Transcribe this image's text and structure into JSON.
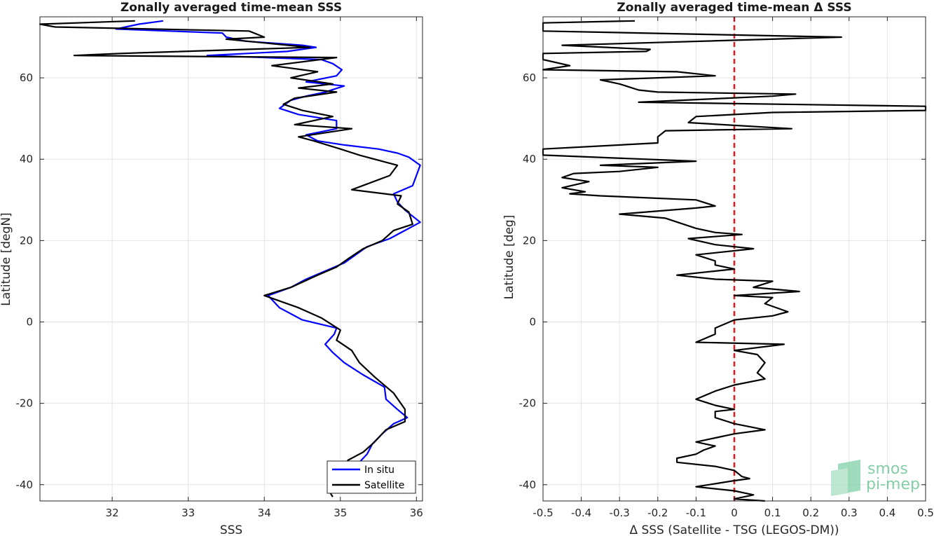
{
  "chart_data": [
    {
      "type": "line",
      "title": "Zonally averaged time-mean SSS",
      "xlabel": "SSS",
      "ylabel": "Latitude [degN]",
      "xlim": [
        31.05,
        36.08
      ],
      "ylim": [
        -44,
        75
      ],
      "xticks": [
        32,
        33,
        34,
        35,
        36
      ],
      "yticks": [
        -40,
        -20,
        0,
        20,
        40,
        60
      ],
      "grid": true,
      "legend_position": "bottom-right",
      "series": [
        {
          "name": "In situ",
          "color": "#0000ff",
          "points": [
            [
              32.67,
              74.0
            ],
            [
              32.35,
              73.2
            ],
            [
              32.05,
              72.0
            ],
            [
              33.45,
              71.0
            ],
            [
              33.5,
              70.0
            ],
            [
              33.75,
              69.0
            ],
            [
              34.5,
              68.0
            ],
            [
              34.68,
              67.5
            ],
            [
              34.3,
              66.5
            ],
            [
              33.25,
              65.5
            ],
            [
              34.75,
              64.5
            ],
            [
              34.9,
              63.5
            ],
            [
              35.02,
              62.0
            ],
            [
              34.95,
              60.5
            ],
            [
              34.55,
              59.0
            ],
            [
              35.05,
              58.0
            ],
            [
              34.8,
              56.5
            ],
            [
              34.55,
              55.5
            ],
            [
              34.35,
              54.5
            ],
            [
              34.2,
              52.5
            ],
            [
              34.45,
              51.0
            ],
            [
              34.95,
              49.5
            ],
            [
              34.95,
              47.5
            ],
            [
              34.55,
              46.0
            ],
            [
              34.7,
              44.5
            ],
            [
              35.05,
              43.5
            ],
            [
              35.5,
              42.5
            ],
            [
              35.75,
              41.5
            ],
            [
              35.9,
              40.5
            ],
            [
              36.05,
              38.5
            ],
            [
              36.0,
              36.0
            ],
            [
              35.95,
              33.5
            ],
            [
              35.7,
              31.5
            ],
            [
              35.75,
              29.5
            ],
            [
              35.85,
              27.5
            ],
            [
              36.05,
              24.5
            ],
            [
              35.85,
              22.5
            ],
            [
              35.65,
              20.5
            ],
            [
              35.35,
              18.5
            ],
            [
              35.2,
              16.5
            ],
            [
              35.05,
              14.5
            ],
            [
              34.8,
              12.5
            ],
            [
              34.55,
              10.5
            ],
            [
              34.35,
              8.5
            ],
            [
              34.05,
              6.5
            ],
            [
              34.2,
              3.5
            ],
            [
              34.5,
              0.5
            ],
            [
              34.95,
              -1.5
            ],
            [
              34.92,
              -3.0
            ],
            [
              34.8,
              -5.5
            ],
            [
              34.9,
              -7.5
            ],
            [
              35.05,
              -10.0
            ],
            [
              35.3,
              -13.0
            ],
            [
              35.58,
              -16.0
            ],
            [
              35.6,
              -19.0
            ],
            [
              35.75,
              -21.5
            ],
            [
              35.88,
              -23.5
            ],
            [
              35.7,
              -25.0
            ],
            [
              35.55,
              -27.5
            ],
            [
              35.42,
              -30.0
            ],
            [
              35.35,
              -32.5
            ],
            [
              35.25,
              -34.5
            ]
          ]
        },
        {
          "name": "Satellite",
          "color": "#000000",
          "points": [
            [
              32.3,
              74.0
            ],
            [
              31.05,
              73.2
            ],
            [
              31.25,
              72.5
            ],
            [
              33.8,
              71.5
            ],
            [
              34.0,
              70.0
            ],
            [
              33.5,
              69.5
            ],
            [
              34.6,
              67.5
            ],
            [
              32.1,
              66.0
            ],
            [
              31.5,
              65.5
            ],
            [
              34.95,
              65.0
            ],
            [
              34.1,
              63.0
            ],
            [
              34.7,
              61.5
            ],
            [
              34.35,
              60.0
            ],
            [
              34.9,
              58.5
            ],
            [
              34.45,
              57.5
            ],
            [
              34.95,
              56.5
            ],
            [
              34.4,
              55.0
            ],
            [
              34.25,
              53.5
            ],
            [
              34.5,
              52.0
            ],
            [
              34.9,
              50.5
            ],
            [
              34.4,
              48.5
            ],
            [
              35.15,
              47.5
            ],
            [
              34.45,
              45.5
            ],
            [
              34.65,
              44.5
            ],
            [
              35.0,
              42.5
            ],
            [
              35.25,
              41.0
            ],
            [
              35.75,
              38.5
            ],
            [
              35.65,
              36.0
            ],
            [
              35.15,
              32.5
            ],
            [
              35.8,
              31.0
            ],
            [
              35.75,
              29.0
            ],
            [
              35.9,
              27.0
            ],
            [
              35.95,
              24.0
            ],
            [
              35.7,
              22.5
            ],
            [
              35.55,
              20.0
            ],
            [
              35.3,
              18.0
            ],
            [
              35.1,
              15.5
            ],
            [
              34.95,
              13.5
            ],
            [
              34.7,
              11.5
            ],
            [
              34.35,
              8.5
            ],
            [
              34.0,
              6.5
            ],
            [
              34.45,
              3.5
            ],
            [
              34.75,
              1.0
            ],
            [
              35.0,
              -2.0
            ],
            [
              34.95,
              -4.5
            ],
            [
              35.15,
              -7.0
            ],
            [
              35.25,
              -10.0
            ],
            [
              35.45,
              -13.5
            ],
            [
              35.7,
              -17.5
            ],
            [
              35.85,
              -21.5
            ],
            [
              35.85,
              -24.5
            ],
            [
              35.6,
              -26.5
            ],
            [
              35.45,
              -29.5
            ],
            [
              35.3,
              -32.0
            ],
            [
              35.1,
              -34.0
            ],
            [
              34.85,
              -41.5
            ],
            [
              34.9,
              -43.0
            ]
          ]
        }
      ]
    },
    {
      "type": "line",
      "title": "Zonally averaged time-mean Δ SSS",
      "xlabel": "Δ SSS (Satellite - TSG (LEGOS-DM))",
      "ylabel": "Latitude [deg]",
      "xlim": [
        -0.5,
        0.5
      ],
      "ylim": [
        -44,
        75
      ],
      "xticks": [
        -0.5,
        -0.4,
        -0.3,
        -0.2,
        -0.1,
        0,
        0.1,
        0.2,
        0.3,
        0.4,
        0.5
      ],
      "yticks": [
        -40,
        -20,
        0,
        20,
        40,
        60
      ],
      "grid": true,
      "reference_line": {
        "x": 0,
        "color": "#e31a1c",
        "style": "dashed"
      },
      "series": [
        {
          "color": "#000000",
          "points": [
            [
              -0.26,
              74.0
            ],
            [
              -0.5,
              73.5
            ],
            [
              -0.5,
              71.5
            ],
            [
              0.28,
              70.0
            ],
            [
              -0.45,
              68.0
            ],
            [
              -0.22,
              67.0
            ],
            [
              -0.23,
              66.5
            ],
            [
              -0.5,
              66.0
            ],
            [
              -0.5,
              64.5
            ],
            [
              -0.43,
              63.0
            ],
            [
              -0.5,
              62.0
            ],
            [
              -0.15,
              61.5
            ],
            [
              -0.05,
              60.5
            ],
            [
              -0.35,
              59.5
            ],
            [
              -0.3,
              58.5
            ],
            [
              -0.25,
              57.0
            ],
            [
              -0.2,
              56.5
            ],
            [
              0.16,
              56.0
            ],
            [
              0.1,
              55.5
            ],
            [
              -0.25,
              54.0
            ],
            [
              0.5,
              53.0
            ],
            [
              0.5,
              52.0
            ],
            [
              0.1,
              51.5
            ],
            [
              -0.1,
              50.5
            ],
            [
              -0.12,
              49.0
            ],
            [
              0.15,
              47.5
            ],
            [
              -0.18,
              47.0
            ],
            [
              -0.2,
              45.5
            ],
            [
              -0.2,
              44.0
            ],
            [
              -0.5,
              42.5
            ],
            [
              -0.5,
              41.0
            ],
            [
              -0.1,
              39.5
            ],
            [
              -0.35,
              38.5
            ],
            [
              -0.2,
              38.0
            ],
            [
              -0.3,
              37.0
            ],
            [
              -0.42,
              36.5
            ],
            [
              -0.45,
              35.5
            ],
            [
              -0.38,
              34.5
            ],
            [
              -0.45,
              33.0
            ],
            [
              -0.39,
              32.0
            ],
            [
              -0.43,
              31.5
            ],
            [
              -0.35,
              31.0
            ],
            [
              -0.1,
              30.0
            ],
            [
              -0.05,
              28.5
            ],
            [
              -0.1,
              28.0
            ],
            [
              -0.3,
              26.5
            ],
            [
              -0.18,
              25.5
            ],
            [
              -0.1,
              23.0
            ],
            [
              -0.05,
              22.0
            ],
            [
              0.02,
              21.5
            ],
            [
              -0.12,
              20.5
            ],
            [
              -0.05,
              19.0
            ],
            [
              0.05,
              18.0
            ],
            [
              -0.1,
              16.5
            ],
            [
              -0.05,
              15.0
            ],
            [
              -0.05,
              14.0
            ],
            [
              0.0,
              13.0
            ],
            [
              -0.15,
              11.5
            ],
            [
              -0.05,
              10.5
            ],
            [
              0.1,
              10.0
            ],
            [
              0.05,
              8.5
            ],
            [
              0.17,
              7.5
            ],
            [
              0.0,
              6.5
            ],
            [
              0.1,
              6.0
            ],
            [
              0.08,
              4.5
            ],
            [
              0.14,
              2.5
            ],
            [
              0.1,
              1.5
            ],
            [
              0.0,
              0.5
            ],
            [
              -0.05,
              -1.5
            ],
            [
              -0.05,
              -3.0
            ],
            [
              -0.1,
              -5.0
            ],
            [
              0.13,
              -5.5
            ],
            [
              0.0,
              -7.0
            ],
            [
              0.06,
              -8.0
            ],
            [
              0.08,
              -10.0
            ],
            [
              0.06,
              -12.5
            ],
            [
              0.08,
              -14.0
            ],
            [
              0.0,
              -15.5
            ],
            [
              -0.05,
              -17.0
            ],
            [
              -0.1,
              -19.0
            ],
            [
              -0.05,
              -20.5
            ],
            [
              0.0,
              -21.5
            ],
            [
              -0.05,
              -22.0
            ],
            [
              -0.05,
              -23.5
            ],
            [
              0.0,
              -25.0
            ],
            [
              0.08,
              -26.5
            ],
            [
              0.0,
              -27.5
            ],
            [
              -0.05,
              -28.5
            ],
            [
              -0.1,
              -29.5
            ],
            [
              -0.05,
              -30.5
            ],
            [
              -0.08,
              -31.5
            ],
            [
              -0.1,
              -32.5
            ],
            [
              -0.15,
              -33.5
            ],
            [
              -0.15,
              -34.5
            ],
            [
              -0.05,
              -35.5
            ],
            [
              0.0,
              -36.5
            ],
            [
              0.02,
              -38.0
            ],
            [
              0.04,
              -38.5
            ],
            [
              0.0,
              -39.0
            ],
            [
              -0.1,
              -40.5
            ],
            [
              0.0,
              -41.5
            ],
            [
              0.05,
              -42.5
            ],
            [
              0.0,
              -43.5
            ],
            [
              0.08,
              -44.0
            ]
          ]
        }
      ]
    }
  ],
  "logo": {
    "line1": "smos",
    "line2": "pi-mep"
  }
}
